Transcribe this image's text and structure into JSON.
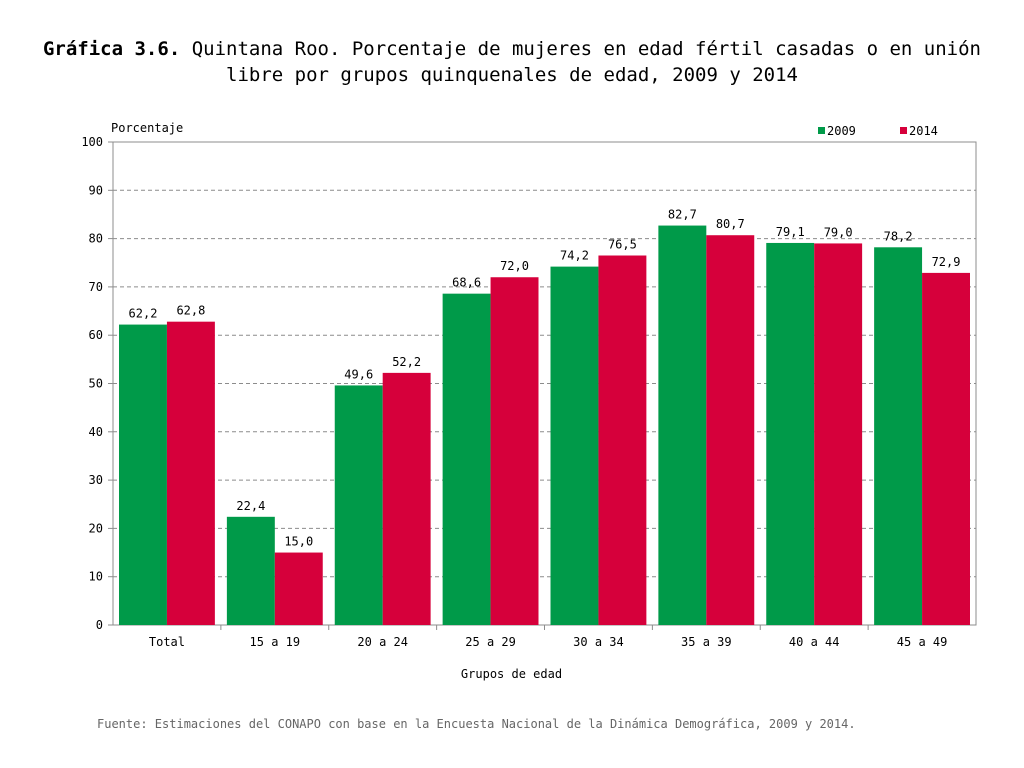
{
  "title": {
    "prefix": "Gráfica 3.6.",
    "text": " Quintana Roo. Porcentaje de mujeres en edad fértil casadas o en unión libre por grupos quinquenales de edad, 2009 y 2014"
  },
  "source": "Fuente: Estimaciones del CONAPO con base en la Encuesta Nacional de la Dinámica Demográfica, 2009 y  2014.",
  "chart_data": {
    "type": "bar",
    "title": "Quintana Roo. Porcentaje de mujeres en edad fértil casadas o en unión libre por grupos quinquenales de edad, 2009 y 2014",
    "xlabel": "Grupos de edad",
    "ylabel": "Porcentaje",
    "ylim": [
      0,
      100
    ],
    "yticks": [
      0,
      10,
      20,
      30,
      40,
      50,
      60,
      70,
      80,
      90,
      100
    ],
    "grid": true,
    "legend_position": "top-right",
    "categories": [
      "Total",
      "15 a 19",
      "20 a 24",
      "25 a 29",
      "30 a 34",
      "35 a 39",
      "40 a 44",
      "45 a 49"
    ],
    "series": [
      {
        "name": "2009",
        "color": "#009a49",
        "values": [
          62.2,
          22.4,
          49.6,
          68.6,
          74.2,
          82.7,
          79.1,
          78.2
        ],
        "labels": [
          "62,2",
          "22,4",
          "49,6",
          "68,6",
          "74,2",
          "82,7",
          "79,1",
          "78,2"
        ]
      },
      {
        "name": "2014",
        "color": "#d6003b",
        "values": [
          62.8,
          15.0,
          52.2,
          72.0,
          76.5,
          80.7,
          79.0,
          72.9
        ],
        "labels": [
          "62,8",
          "15,0",
          "52,2",
          "72,0",
          "76,5",
          "80,7",
          "79,0",
          "72,9"
        ]
      }
    ]
  }
}
